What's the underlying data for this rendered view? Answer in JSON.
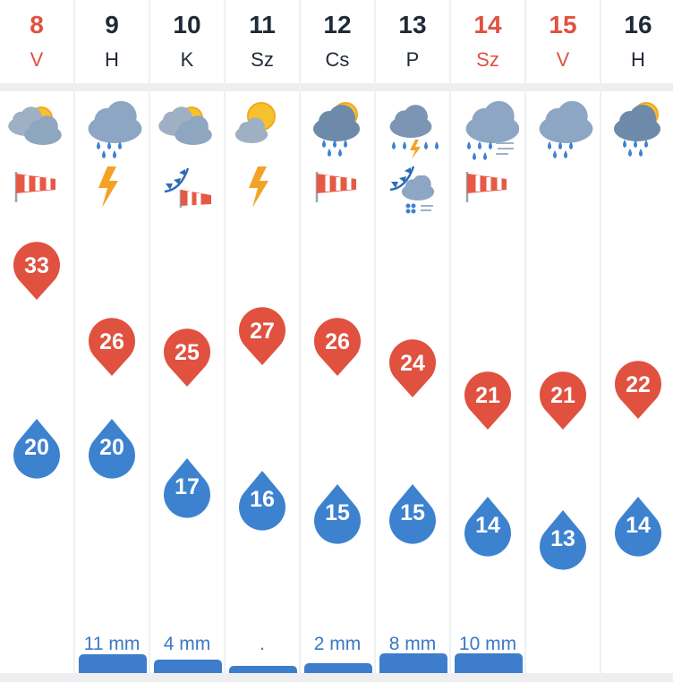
{
  "forecast": {
    "days": [
      {
        "date": "8",
        "dow": "V",
        "weekend": true,
        "weather": "partly-cloudy-icon",
        "extra": "windsock-icon",
        "extra2": "",
        "max": 33,
        "min": 20,
        "precip": "",
        "precip_level": 0
      },
      {
        "date": "9",
        "dow": "H",
        "weekend": false,
        "weather": "rain-icon",
        "extra": "lightning-icon",
        "extra2": "",
        "max": 26,
        "min": 20,
        "precip": "11 mm",
        "precip_level": 0.85
      },
      {
        "date": "10",
        "dow": "K",
        "weekend": false,
        "weather": "partly-cloudy-icon",
        "extra": "cold-front-windsock-icon",
        "extra2": "",
        "max": 25,
        "min": 17,
        "precip": "4 mm",
        "precip_level": 0.55
      },
      {
        "date": "11",
        "dow": "Sz",
        "weekend": false,
        "weather": "sun-cloud-icon",
        "extra": "lightning-icon",
        "extra2": "",
        "max": 27,
        "min": 16,
        "precip": ".",
        "precip_level": 0.2
      },
      {
        "date": "12",
        "dow": "Cs",
        "weekend": false,
        "weather": "sun-cloud-rain-icon",
        "extra": "windsock-icon",
        "extra2": "",
        "max": 26,
        "min": 15,
        "precip": "2 mm",
        "precip_level": 0.35
      },
      {
        "date": "13",
        "dow": "P",
        "weekend": false,
        "weather": "thunderstorm-rain-icon",
        "extra": "cold-front-icon",
        "extra2": "hail-cloud-icon",
        "max": 24,
        "min": 15,
        "precip": "8 mm",
        "precip_level": 0.9
      },
      {
        "date": "14",
        "dow": "Sz",
        "weekend": true,
        "weather": "rain-wind-icon",
        "extra": "windsock-icon",
        "extra2": "",
        "max": 21,
        "min": 14,
        "precip": "10 mm",
        "precip_level": 0.9
      },
      {
        "date": "15",
        "dow": "V",
        "weekend": true,
        "weather": "rain-icon",
        "extra": "",
        "extra2": "",
        "max": 21,
        "min": 13,
        "precip": "",
        "precip_level": 0
      },
      {
        "date": "16",
        "dow": "H",
        "weekend": false,
        "weather": "sun-cloud-rain-icon",
        "extra": "",
        "extra2": "",
        "max": 22,
        "min": 14,
        "precip": "",
        "precip_level": 0
      }
    ]
  },
  "colors": {
    "max": "#e0513f",
    "min": "#3d82cf",
    "weekend": "#e0513f",
    "precip": "#3d7dcc"
  }
}
